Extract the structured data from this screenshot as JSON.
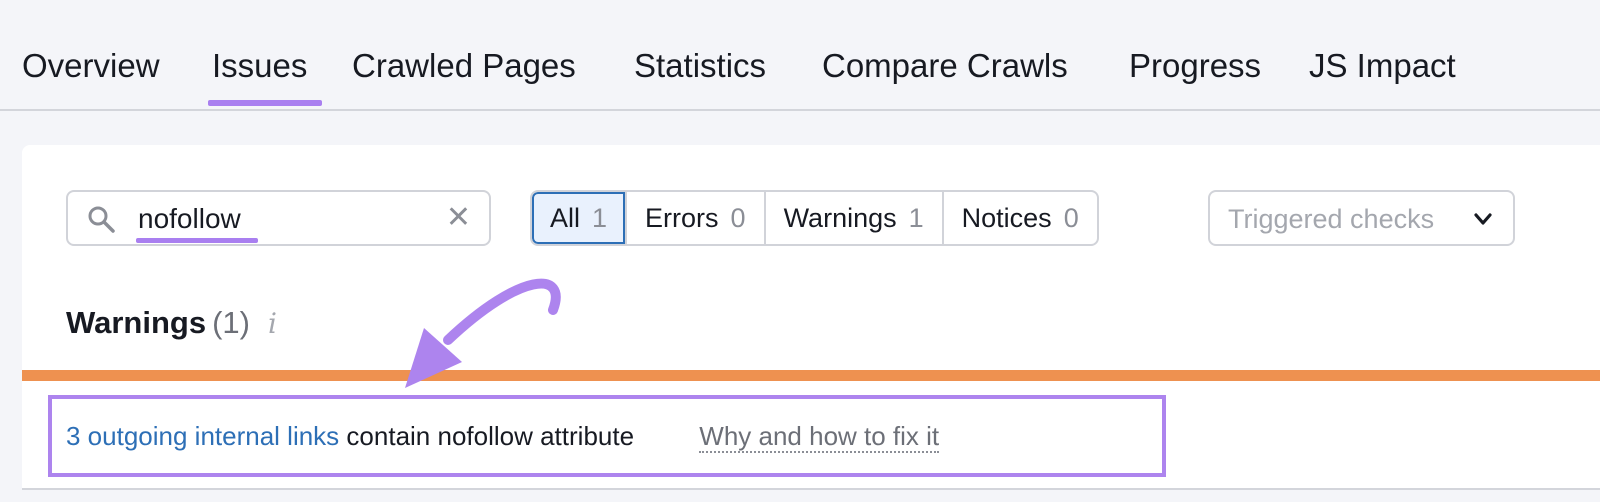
{
  "tabs": [
    {
      "label": "Overview",
      "active": false
    },
    {
      "label": "Issues",
      "active": true
    },
    {
      "label": "Crawled Pages",
      "active": false
    },
    {
      "label": "Statistics",
      "active": false
    },
    {
      "label": "Compare Crawls",
      "active": false
    },
    {
      "label": "Progress",
      "active": false
    },
    {
      "label": "JS Impact",
      "active": false
    }
  ],
  "search": {
    "value": "nofollow",
    "icon": "search-icon",
    "clear_icon": "close-icon"
  },
  "filters": [
    {
      "label": "All",
      "count": "1",
      "active": true
    },
    {
      "label": "Errors",
      "count": "0",
      "active": false
    },
    {
      "label": "Warnings",
      "count": "1",
      "active": false
    },
    {
      "label": "Notices",
      "count": "0",
      "active": false
    }
  ],
  "checks_dropdown": {
    "placeholder": "Triggered checks"
  },
  "section": {
    "title": "Warnings",
    "count": "(1)",
    "info": "i"
  },
  "issue": {
    "link_text": "3 outgoing internal links",
    "text": "contain nofollow attribute",
    "fix_link": "Why and how to fix it"
  },
  "colors": {
    "accent": "#a97ff0",
    "warning": "#ee9150",
    "link": "#2d6fb6",
    "active_filter_bg": "#e9f1fd"
  }
}
